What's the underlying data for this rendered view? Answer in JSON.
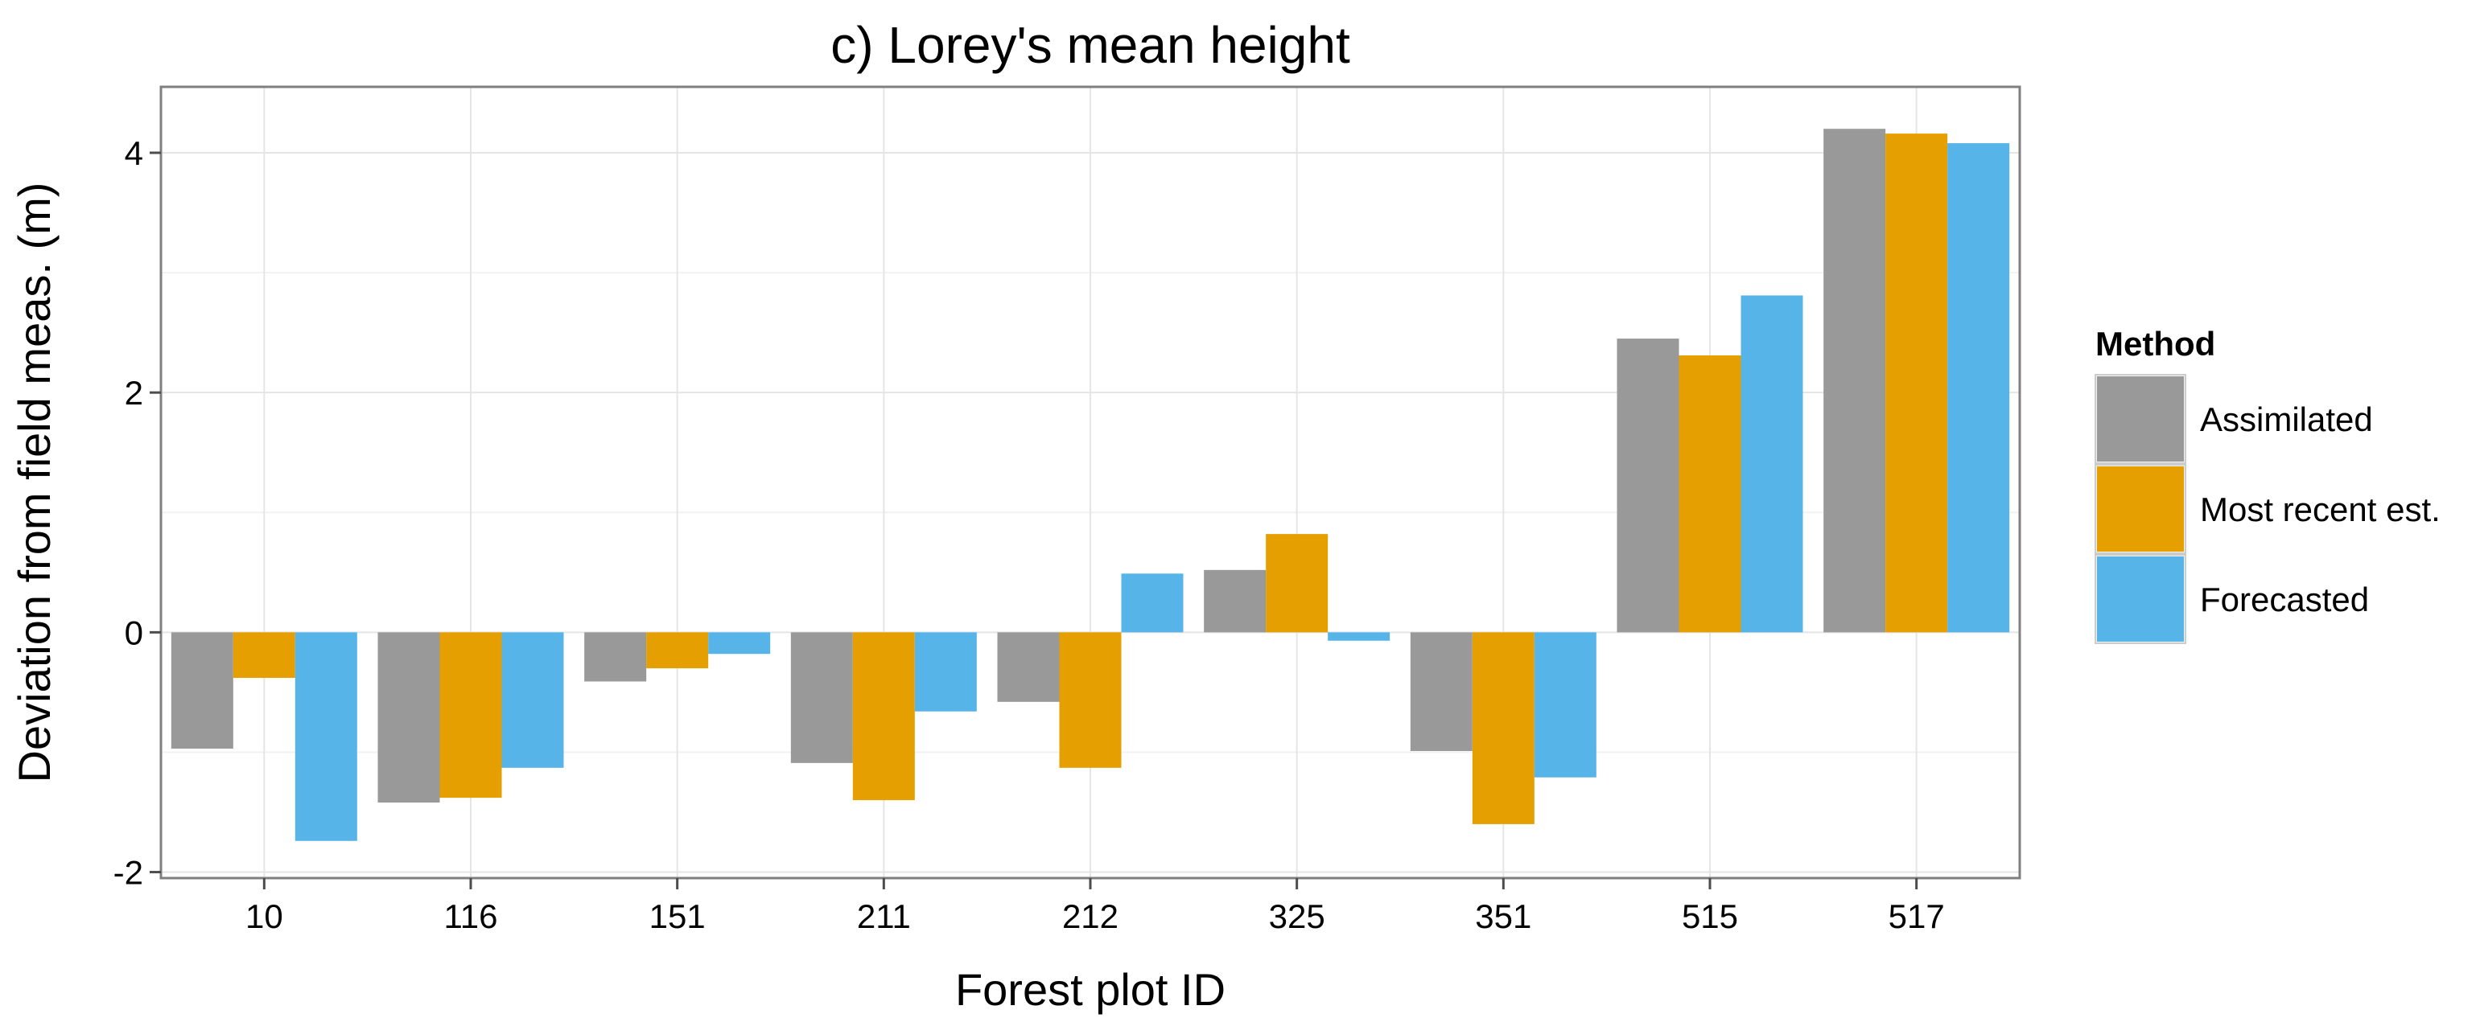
{
  "chart_data": {
    "type": "bar",
    "title": "c) Lorey's mean height",
    "xlabel": "Forest plot ID",
    "ylabel": "Deviation from field meas. (m)",
    "categories": [
      "10",
      "116",
      "151",
      "211",
      "212",
      "325",
      "351",
      "515",
      "517"
    ],
    "series": [
      {
        "name": "Assimilated",
        "color": "#999999",
        "values": [
          -0.97,
          -1.42,
          -0.41,
          -1.09,
          -0.58,
          0.52,
          -0.99,
          2.45,
          4.2
        ]
      },
      {
        "name": "Most recent est.",
        "color": "#E69F00",
        "values": [
          -0.38,
          -1.38,
          -0.3,
          -1.4,
          -1.13,
          0.82,
          -1.6,
          2.31,
          4.16
        ]
      },
      {
        "name": "Forecasted",
        "color": "#56B4E9",
        "values": [
          -1.74,
          -1.13,
          -0.18,
          -0.66,
          0.49,
          -0.07,
          -1.21,
          2.81,
          4.08
        ]
      }
    ],
    "yticks": [
      -2,
      0,
      2,
      4
    ],
    "ylim": [
      -2.05,
      4.55
    ],
    "grid": true,
    "legend": {
      "title": "Method",
      "position": "right"
    }
  }
}
